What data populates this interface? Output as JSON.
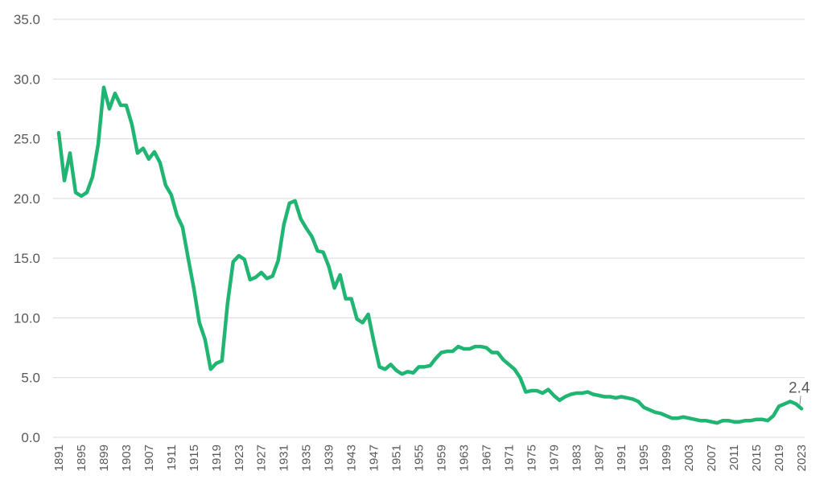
{
  "chart_data": {
    "type": "line",
    "title": "",
    "xlabel": "",
    "ylabel": "",
    "ylim": [
      0,
      35
    ],
    "y_ticks": [
      "0.0",
      "5.0",
      "10.0",
      "15.0",
      "20.0",
      "25.0",
      "30.0",
      "35.0"
    ],
    "x_tick_labels": [
      "1891",
      "1895",
      "1899",
      "1903",
      "1907",
      "1911",
      "1915",
      "1919",
      "1923",
      "1927",
      "1931",
      "1935",
      "1939",
      "1943",
      "1947",
      "1951",
      "1955",
      "1959",
      "1963",
      "1967",
      "1971",
      "1975",
      "1979",
      "1983",
      "1987",
      "1991",
      "1995",
      "1999",
      "2003",
      "2007",
      "2011",
      "2015",
      "2019",
      "2023"
    ],
    "grid": true,
    "legend": "none",
    "colors": {
      "series": "#21b573",
      "grid": "#d9d9d9",
      "text": "#595959"
    },
    "annotation": {
      "x": 2023,
      "label": "2.4"
    },
    "series": [
      {
        "x": [
          1891,
          1892,
          1893,
          1894,
          1895,
          1896,
          1897,
          1898,
          1899,
          1900,
          1901,
          1902,
          1903,
          1904,
          1905,
          1906,
          1907,
          1908,
          1909,
          1910,
          1911,
          1912,
          1913,
          1914,
          1915,
          1916,
          1917,
          1918,
          1919,
          1920,
          1921,
          1922,
          1923,
          1924,
          1925,
          1926,
          1927,
          1928,
          1929,
          1930,
          1931,
          1932,
          1933,
          1934,
          1935,
          1936,
          1937,
          1938,
          1939,
          1940,
          1941,
          1942,
          1943,
          1944,
          1945,
          1946,
          1947,
          1948,
          1949,
          1950,
          1951,
          1952,
          1953,
          1954,
          1955,
          1956,
          1957,
          1958,
          1959,
          1960,
          1961,
          1962,
          1963,
          1964,
          1965,
          1966,
          1967,
          1968,
          1969,
          1970,
          1971,
          1972,
          1973,
          1974,
          1975,
          1976,
          1977,
          1978,
          1979,
          1980,
          1981,
          1982,
          1983,
          1984,
          1985,
          1986,
          1987,
          1988,
          1989,
          1990,
          1991,
          1992,
          1993,
          1994,
          1995,
          1996,
          1997,
          1998,
          1999,
          2000,
          2001,
          2002,
          2003,
          2004,
          2005,
          2006,
          2007,
          2008,
          2009,
          2010,
          2011,
          2012,
          2013,
          2014,
          2015,
          2016,
          2017,
          2018,
          2019,
          2020,
          2021,
          2022,
          2023
        ],
        "values": [
          25.5,
          21.5,
          23.8,
          20.5,
          20.2,
          20.5,
          21.8,
          24.5,
          29.3,
          27.5,
          28.8,
          27.8,
          27.8,
          26.2,
          23.8,
          24.2,
          23.3,
          23.9,
          23.0,
          21.1,
          20.3,
          18.6,
          17.6,
          15.0,
          12.5,
          9.6,
          8.2,
          5.7,
          6.2,
          6.4,
          11.2,
          14.7,
          15.2,
          14.9,
          13.2,
          13.4,
          13.8,
          13.3,
          13.5,
          14.8,
          17.8,
          19.6,
          19.8,
          18.3,
          17.5,
          16.8,
          15.6,
          15.5,
          14.3,
          12.5,
          13.6,
          11.6,
          11.6,
          9.9,
          9.6,
          10.3,
          8.0,
          5.9,
          5.7,
          6.1,
          5.6,
          5.3,
          5.5,
          5.4,
          5.9,
          5.9,
          6.0,
          6.6,
          7.1,
          7.2,
          7.2,
          7.6,
          7.4,
          7.4,
          7.6,
          7.6,
          7.5,
          7.1,
          7.1,
          6.5,
          6.1,
          5.7,
          5.0,
          3.8,
          3.9,
          3.9,
          3.7,
          4.0,
          3.5,
          3.1,
          3.4,
          3.6,
          3.7,
          3.7,
          3.8,
          3.6,
          3.5,
          3.4,
          3.4,
          3.3,
          3.4,
          3.3,
          3.2,
          3.0,
          2.5,
          2.3,
          2.1,
          2.0,
          1.8,
          1.6,
          1.6,
          1.7,
          1.6,
          1.5,
          1.4,
          1.4,
          1.3,
          1.2,
          1.4,
          1.4,
          1.3,
          1.3,
          1.4,
          1.4,
          1.5,
          1.5,
          1.4,
          1.8,
          2.6,
          2.8,
          3.0,
          2.8,
          2.4
        ]
      }
    ]
  }
}
